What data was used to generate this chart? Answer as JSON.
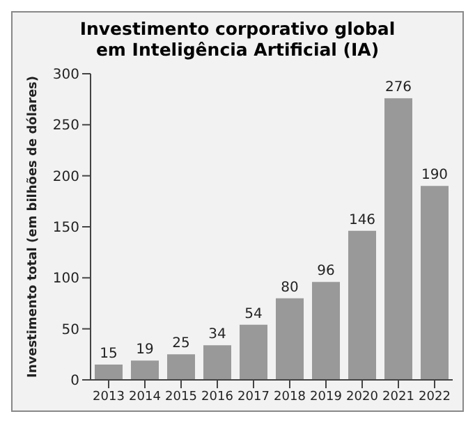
{
  "chart_data": {
    "type": "bar",
    "title": "Investimento corporativo global\nem Inteligência Artificial (IA)",
    "ylabel": "Investimento total (em bilhões de dólares)",
    "categories": [
      "2013",
      "2014",
      "2015",
      "2016",
      "2017",
      "2018",
      "2019",
      "2020",
      "2021",
      "2022"
    ],
    "values": [
      15,
      19,
      25,
      34,
      54,
      80,
      96,
      146,
      276,
      190
    ],
    "color": "#999999",
    "ylim": [
      0,
      300
    ],
    "yticks": [
      0,
      50,
      100,
      150,
      200,
      250,
      300
    ],
    "data_labels": true,
    "grid": false,
    "legend": false
  }
}
